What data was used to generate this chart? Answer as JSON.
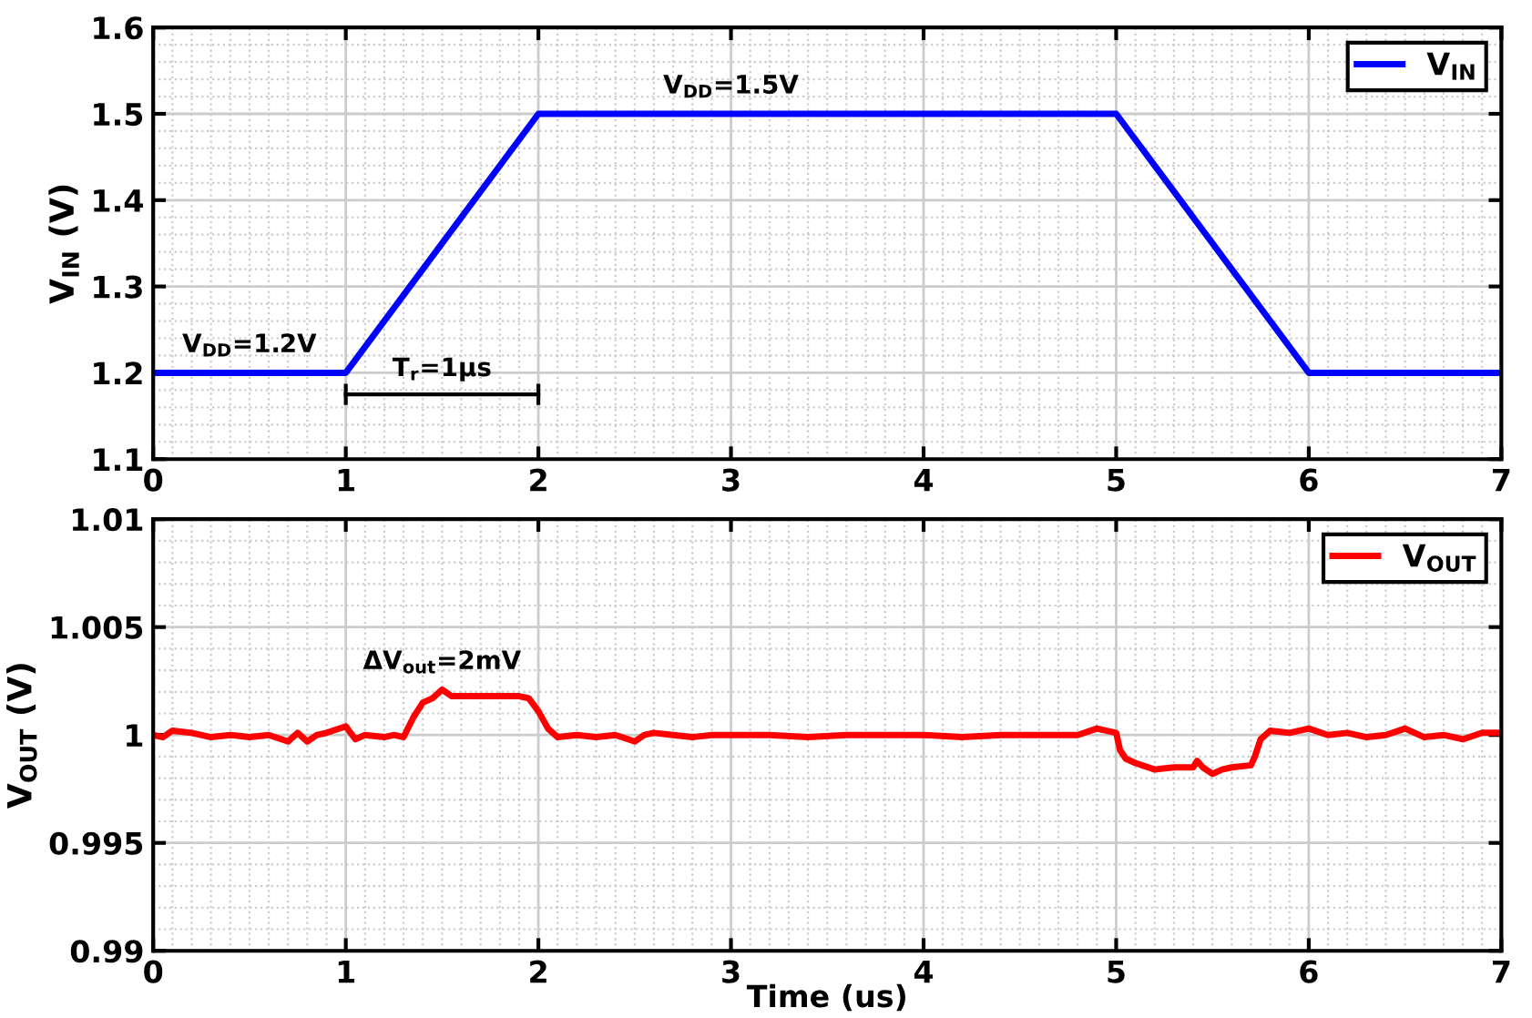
{
  "chart_data": [
    {
      "type": "line",
      "ylabel": "V$_{IN}$ (V)",
      "xlim": [
        0,
        7
      ],
      "xticks": [
        0,
        1,
        2,
        3,
        4,
        5,
        6,
        7
      ],
      "ylim": [
        1.1,
        1.6
      ],
      "yticks": [
        1.1,
        1.2,
        1.3,
        1.4,
        1.5,
        1.6
      ],
      "grid": true,
      "legend": "top right",
      "marker": "none",
      "line_style": "solid",
      "series": [
        {
          "name": "V$_{IN}$",
          "color": "#0000ff",
          "x": [
            0,
            1,
            2,
            5,
            6,
            7
          ],
          "values": [
            1.2,
            1.2,
            1.5,
            1.5,
            1.2,
            1.2
          ]
        }
      ],
      "annotations": [
        {
          "text": "V$_{DD}$=1.2V",
          "x": 0.5,
          "y": 1.2
        },
        {
          "text": "V$_{DD}$=1.5V",
          "x": 3.0,
          "y": 1.5
        },
        "T$_{r}$=1μs"
      ]
    },
    {
      "type": "line",
      "xlabel": "Time (us)",
      "ylabel": "V$_{OUT}$ (V)",
      "xlim": [
        0,
        7
      ],
      "xticks": [
        0,
        1,
        2,
        3,
        4,
        5,
        6,
        7
      ],
      "ylim": [
        0.99,
        1.01
      ],
      "yticks": [
        0.99,
        0.995,
        1,
        1.005,
        1.01
      ],
      "grid": true,
      "legend": "top right",
      "marker": "none",
      "line_style": "solid",
      "series": [
        {
          "name": "V$_{OUT}$",
          "color": "#ff0000",
          "x": [
            0,
            0.05,
            0.1,
            0.2,
            0.3,
            0.4,
            0.5,
            0.6,
            0.7,
            0.75,
            0.8,
            0.85,
            0.9,
            1.0,
            1.05,
            1.1,
            1.2,
            1.25,
            1.3,
            1.35,
            1.4,
            1.45,
            1.5,
            1.55,
            1.6,
            1.7,
            1.8,
            1.9,
            1.95,
            2.0,
            2.05,
            2.1,
            2.2,
            2.3,
            2.4,
            2.5,
            2.55,
            2.6,
            2.7,
            2.8,
            2.9,
            3.0,
            3.2,
            3.4,
            3.6,
            3.8,
            4.0,
            4.2,
            4.4,
            4.6,
            4.8,
            4.9,
            5.0,
            5.02,
            5.05,
            5.1,
            5.2,
            5.3,
            5.4,
            5.42,
            5.45,
            5.5,
            5.55,
            5.6,
            5.7,
            5.72,
            5.75,
            5.8,
            5.9,
            6.0,
            6.1,
            6.2,
            6.3,
            6.4,
            6.5,
            6.6,
            6.7,
            6.8,
            6.9,
            7.0
          ],
          "values": [
            1.0,
            0.9999,
            1.0002,
            1.0001,
            0.9999,
            1.0,
            0.9999,
            1.0,
            0.9997,
            1.0001,
            0.9997,
            1.0,
            1.0001,
            1.0004,
            0.9998,
            1.0,
            0.9999,
            1.0,
            0.9999,
            1.0008,
            1.0015,
            1.0017,
            1.0021,
            1.0018,
            1.0018,
            1.0018,
            1.0018,
            1.0018,
            1.0017,
            1.0011,
            1.0003,
            0.9999,
            1.0,
            0.9999,
            1.0,
            0.9997,
            1.0,
            1.0001,
            1.0,
            0.9999,
            1.0,
            1.0,
            1.0,
            0.9999,
            1.0,
            1.0,
            1.0,
            0.9999,
            1.0,
            1.0,
            1.0,
            1.0003,
            1.0001,
            0.9993,
            0.9989,
            0.9987,
            0.9984,
            0.9985,
            0.9985,
            0.9988,
            0.9985,
            0.9982,
            0.9984,
            0.9985,
            0.9986,
            0.999,
            0.9998,
            1.0002,
            1.0001,
            1.0003,
            1.0,
            1.0001,
            0.9999,
            1.0,
            1.0003,
            0.9999,
            1.0,
            0.9998,
            1.0001,
            1.0001
          ]
        }
      ],
      "annotations": [
        {
          "text": "ΔV$_{out}$=2mV",
          "x": 1.5,
          "y": 1.0021
        }
      ]
    }
  ]
}
